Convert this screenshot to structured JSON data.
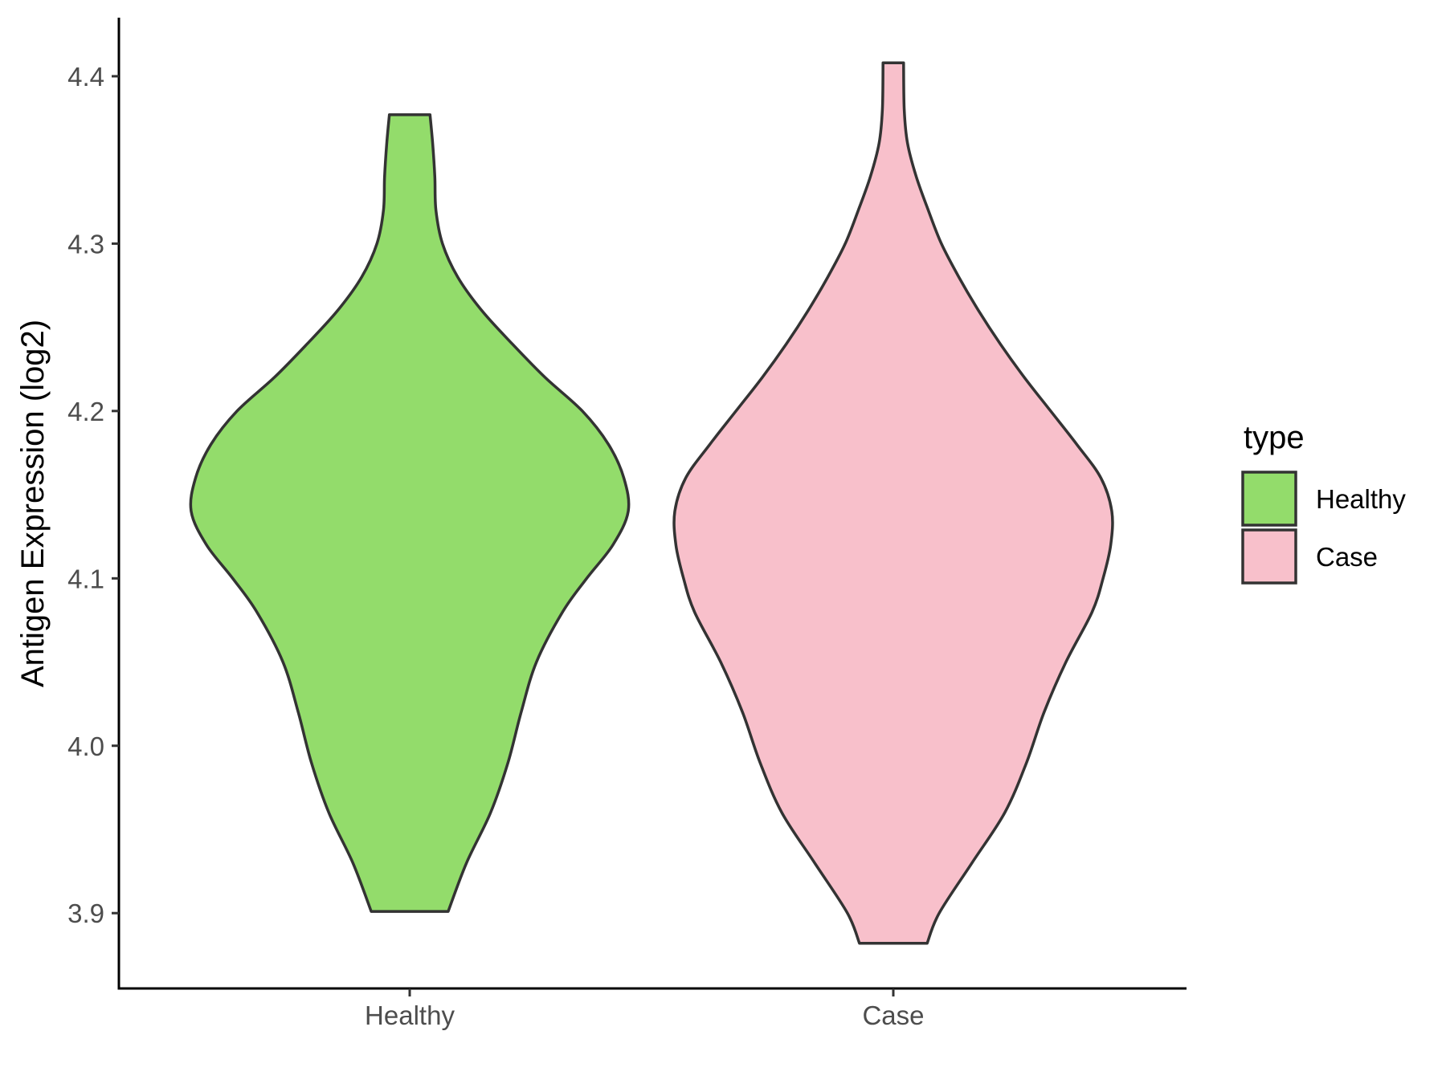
{
  "chart_data": {
    "type": "violin",
    "ylabel": "Antigen Expression (log2)",
    "ylim": [
      3.855,
      4.435
    ],
    "y_ticks": [
      "3.9",
      "4.0",
      "4.1",
      "4.2",
      "4.3",
      "4.4"
    ],
    "categories": [
      "Healthy",
      "Case"
    ],
    "legend": {
      "title": "type",
      "placement": "right",
      "entries": [
        "Healthy",
        "Case"
      ]
    },
    "series": [
      {
        "name": "Healthy",
        "color": "#93DC6B",
        "y_min": 3.901,
        "y_max": 4.377,
        "density": [
          [
            3.901,
            0.176
          ],
          [
            3.93,
            0.26
          ],
          [
            3.96,
            0.37
          ],
          [
            3.99,
            0.45
          ],
          [
            4.02,
            0.51
          ],
          [
            4.05,
            0.58
          ],
          [
            4.08,
            0.7
          ],
          [
            4.1,
            0.81
          ],
          [
            4.12,
            0.93
          ],
          [
            4.14,
            1.0
          ],
          [
            4.16,
            0.98
          ],
          [
            4.18,
            0.91
          ],
          [
            4.2,
            0.79
          ],
          [
            4.22,
            0.62
          ],
          [
            4.24,
            0.47
          ],
          [
            4.26,
            0.33
          ],
          [
            4.28,
            0.22
          ],
          [
            4.3,
            0.15
          ],
          [
            4.32,
            0.12
          ],
          [
            4.34,
            0.115
          ],
          [
            4.36,
            0.105
          ],
          [
            4.377,
            0.093
          ]
        ]
      },
      {
        "name": "Case",
        "color": "#F8C0CB",
        "y_min": 3.882,
        "y_max": 4.408,
        "density": [
          [
            3.882,
            0.155
          ],
          [
            3.9,
            0.21
          ],
          [
            3.93,
            0.36
          ],
          [
            3.96,
            0.51
          ],
          [
            3.99,
            0.61
          ],
          [
            4.02,
            0.69
          ],
          [
            4.05,
            0.79
          ],
          [
            4.08,
            0.91
          ],
          [
            4.1,
            0.96
          ],
          [
            4.12,
            0.995
          ],
          [
            4.14,
            1.0
          ],
          [
            4.16,
            0.95
          ],
          [
            4.18,
            0.84
          ],
          [
            4.2,
            0.72
          ],
          [
            4.22,
            0.6
          ],
          [
            4.24,
            0.49
          ],
          [
            4.26,
            0.39
          ],
          [
            4.28,
            0.3
          ],
          [
            4.3,
            0.22
          ],
          [
            4.32,
            0.16
          ],
          [
            4.34,
            0.105
          ],
          [
            4.36,
            0.065
          ],
          [
            4.38,
            0.05
          ],
          [
            4.408,
            0.047
          ]
        ]
      }
    ]
  }
}
